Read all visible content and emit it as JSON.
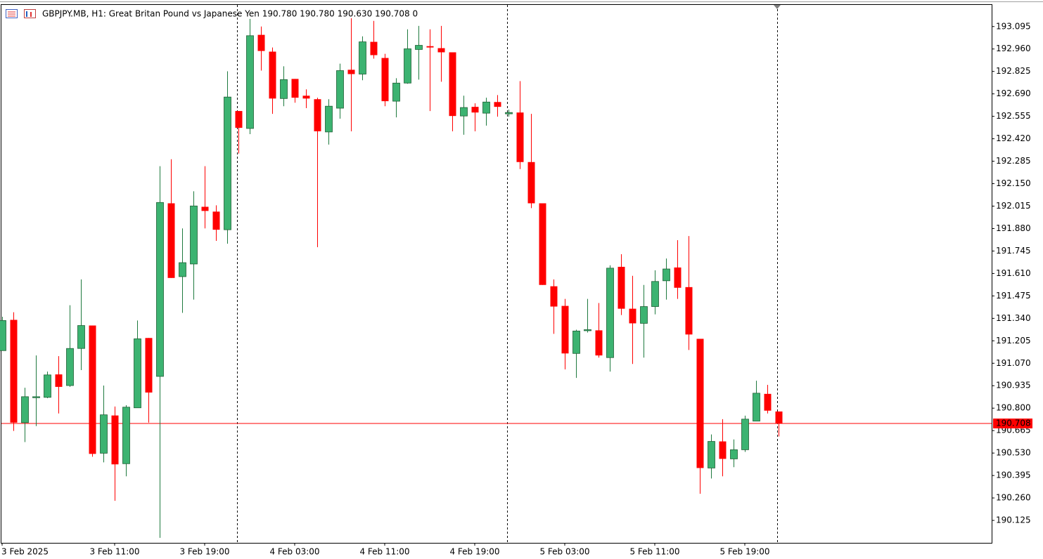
{
  "chart_data": {
    "type": "candlestick",
    "title": "GBPJPY.MB, H1:  Great Britan Pound vs Japanese Yen  190.780 190.780 190.630 190.708  0",
    "categories": [
      "3 Feb 2025",
      null,
      null,
      null,
      null,
      null,
      null,
      null,
      null,
      null,
      "3 Feb 11:00",
      null,
      null,
      null,
      null,
      null,
      null,
      null,
      "3 Feb 19:00",
      null,
      null,
      null,
      null,
      null,
      null,
      null,
      "4 Feb 03:00",
      null,
      null,
      null,
      null,
      null,
      null,
      null,
      "4 Feb 11:00",
      null,
      null,
      null,
      null,
      null,
      null,
      null,
      "4 Feb 19:00",
      null,
      null,
      null,
      null,
      null,
      null,
      null,
      "5 Feb 03:00",
      null,
      null,
      null,
      null,
      null,
      null,
      null,
      "5 Feb 11:00",
      null,
      null,
      null,
      null,
      null,
      null,
      null,
      "5 Feb 19:00",
      null,
      null,
      null
    ],
    "open": [
      191.146,
      191.331,
      190.713,
      190.865,
      190.865,
      191.003,
      190.936,
      191.159,
      191.297,
      190.529,
      190.756,
      190.466,
      190.802,
      191.222,
      190.991,
      192.032,
      191.591,
      191.667,
      192.011,
      191.982,
      191.873,
      192.587,
      192.482,
      193.045,
      192.944,
      192.662,
      192.78,
      192.679,
      192.658,
      192.461,
      192.604,
      192.835,
      192.809,
      193.003,
      192.906,
      192.646,
      192.755,
      192.957,
      192.977,
      192.965,
      192.94,
      192.557,
      192.612,
      192.574,
      192.641,
      192.57,
      192.578,
      192.28,
      192.032,
      191.533,
      191.415,
      191.129,
      191.268,
      191.268,
      191.104,
      191.65,
      191.398,
      191.31,
      191.411,
      191.566,
      191.646,
      191.528,
      191.217,
      190.44,
      190.6,
      190.495,
      190.55,
      190.722,
      190.886,
      190.78
    ],
    "high": [
      191.35,
      191.377,
      190.923,
      191.117,
      191.02,
      191.113,
      191.419,
      191.574,
      191.297,
      190.936,
      190.81,
      190.818,
      191.327,
      191.222,
      192.255,
      192.297,
      191.881,
      192.104,
      192.255,
      192.02,
      192.826,
      192.587,
      193.141,
      193.095,
      192.969,
      192.856,
      192.78,
      192.717,
      192.667,
      192.658,
      192.872,
      193.145,
      193.036,
      193.129,
      192.931,
      192.784,
      193.078,
      193.099,
      193.078,
      193.099,
      192.94,
      192.679,
      192.633,
      192.667,
      192.683,
      192.595,
      192.767,
      192.57,
      192.032,
      191.574,
      191.457,
      191.272,
      191.457,
      191.432,
      191.659,
      191.726,
      191.596,
      191.541,
      191.629,
      191.7,
      191.81,
      191.835,
      191.217,
      190.642,
      190.734,
      190.612,
      190.755,
      190.965,
      190.94,
      190.78
    ],
    "low": [
      191.146,
      190.663,
      190.596,
      190.692,
      190.86,
      190.768,
      190.928,
      191.029,
      190.508,
      190.474,
      190.243,
      190.39,
      190.802,
      190.713,
      190.02,
      191.583,
      191.373,
      191.453,
      191.881,
      191.806,
      191.789,
      192.331,
      192.448,
      192.83,
      192.57,
      192.616,
      192.637,
      192.604,
      191.768,
      192.385,
      192.541,
      192.465,
      192.772,
      192.902,
      192.616,
      192.549,
      192.751,
      192.776,
      192.587,
      192.763,
      192.465,
      192.444,
      192.465,
      192.499,
      192.553,
      192.553,
      192.238,
      192.003,
      191.541,
      191.247,
      191.033,
      190.982,
      191.255,
      191.104,
      191.02,
      191.36,
      191.066,
      191.104,
      191.364,
      191.453,
      191.457,
      191.15,
      190.285,
      190.377,
      190.39,
      190.445,
      190.537,
      190.722,
      190.768,
      190.63
    ],
    "close": [
      191.327,
      190.713,
      190.869,
      190.869,
      191.0,
      190.928,
      191.159,
      191.297,
      190.525,
      190.76,
      190.462,
      190.806,
      191.217,
      190.894,
      192.037,
      191.583,
      191.675,
      192.016,
      191.986,
      191.873,
      192.671,
      192.486,
      193.04,
      192.948,
      192.662,
      192.776,
      192.667,
      192.662,
      192.465,
      192.616,
      192.83,
      192.809,
      193.003,
      192.923,
      192.646,
      192.755,
      192.961,
      192.982,
      192.969,
      192.94,
      192.557,
      192.608,
      192.578,
      192.641,
      192.612,
      192.578,
      192.28,
      192.032,
      191.541,
      191.411,
      191.129,
      191.264,
      191.272,
      191.117,
      191.642,
      191.398,
      191.31,
      191.411,
      191.562,
      191.637,
      191.524,
      191.243,
      190.44,
      190.6,
      190.495,
      190.55,
      190.734,
      190.89,
      190.785,
      190.708
    ],
    "up_color": "#3cb371",
    "down_color": "#ff0000",
    "last_price": 190.708,
    "last_price_color": "#ff0000",
    "ylim": [
      189.99,
      193.225
    ],
    "yticks": [
      190.125,
      {
        "value": 190.26,
        "label": "190.260"
      },
      190.395,
      {
        "value": 190.53,
        "label": "190.530"
      },
      190.665,
      {
        "value": 190.8,
        "label": "190.800"
      },
      190.935,
      {
        "value": 191.07,
        "label": "191.070"
      },
      191.205,
      {
        "value": 191.34,
        "label": "191.340"
      },
      191.475,
      {
        "value": 191.61,
        "label": "191.610"
      },
      191.745,
      {
        "value": 191.88,
        "label": "191.880"
      },
      192.015,
      {
        "value": 192.15,
        "label": "192.150"
      },
      192.285,
      {
        "value": 192.42,
        "label": "192.420"
      },
      192.555,
      {
        "value": 192.69,
        "label": "192.690"
      },
      192.825,
      {
        "value": 192.96,
        "label": "192.960"
      },
      193.095
    ],
    "grid": false
  }
}
